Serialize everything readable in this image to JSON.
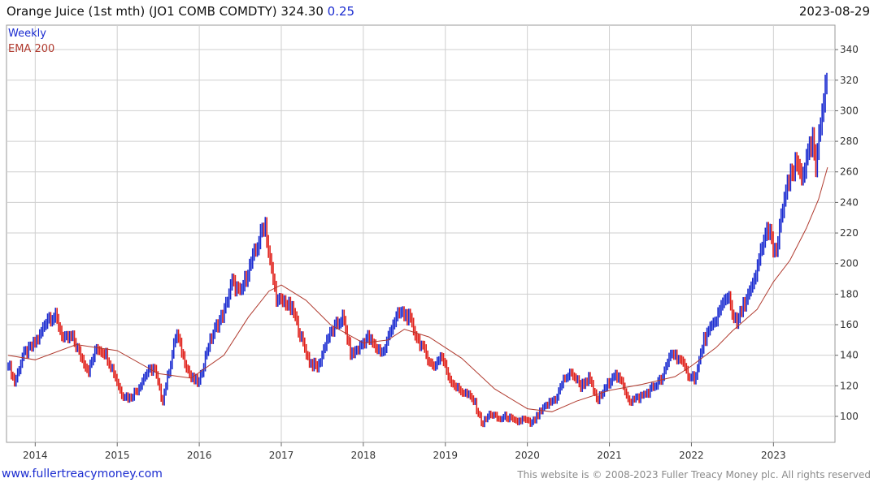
{
  "header": {
    "title": "Orange Juice (1st mth)  (JO1 COMB COMDTY) 324.30",
    "change": "0.25",
    "date": "2023-08-29"
  },
  "footer": {
    "website": "www.fullertreacymoney.com",
    "copyright": "This website is © 2008-2023 Fuller Treacy Money plc. All rights reserved"
  },
  "colors": {
    "up": "#1a2bd0",
    "down": "#e0201a",
    "ema": "#b03a2e",
    "grid": "#cfcfcf"
  },
  "chart_data": {
    "type": "line",
    "legend": [
      "Weekly",
      "EMA 200"
    ],
    "legend_position": "top-left",
    "y_axis_position": "right",
    "grid": true,
    "ylim": [
      83,
      356
    ],
    "yticks": [
      100,
      120,
      140,
      160,
      180,
      200,
      220,
      240,
      260,
      280,
      300,
      320,
      340
    ],
    "xlim": [
      2013.65,
      2023.75
    ],
    "xticks": [
      "2014",
      "2015",
      "2016",
      "2017",
      "2018",
      "2019",
      "2020",
      "2021",
      "2022",
      "2023"
    ],
    "series": [
      {
        "name": "Weekly",
        "x": [
          2013.67,
          2013.75,
          2013.85,
          2013.95,
          2014.05,
          2014.15,
          2014.25,
          2014.35,
          2014.45,
          2014.55,
          2014.65,
          2014.75,
          2014.85,
          2014.95,
          2015.05,
          2015.15,
          2015.25,
          2015.35,
          2015.45,
          2015.55,
          2015.65,
          2015.72,
          2015.8,
          2015.9,
          2016.0,
          2016.1,
          2016.2,
          2016.3,
          2016.4,
          2016.5,
          2016.6,
          2016.7,
          2016.8,
          2016.85,
          2016.9,
          2016.95,
          2017.05,
          2017.15,
          2017.25,
          2017.35,
          2017.45,
          2017.55,
          2017.65,
          2017.75,
          2017.85,
          2017.95,
          2018.05,
          2018.15,
          2018.25,
          2018.35,
          2018.45,
          2018.55,
          2018.65,
          2018.75,
          2018.85,
          2018.95,
          2019.05,
          2019.15,
          2019.25,
          2019.35,
          2019.45,
          2019.55,
          2019.65,
          2019.75,
          2019.85,
          2019.95,
          2020.05,
          2020.15,
          2020.25,
          2020.35,
          2020.45,
          2020.55,
          2020.65,
          2020.75,
          2020.85,
          2020.95,
          2021.05,
          2021.15,
          2021.25,
          2021.35,
          2021.45,
          2021.55,
          2021.65,
          2021.75,
          2021.85,
          2021.95,
          2022.05,
          2022.15,
          2022.25,
          2022.35,
          2022.45,
          2022.5,
          2022.55,
          2022.65,
          2022.75,
          2022.8,
          2022.85,
          2022.95,
          2023.0,
          2023.05,
          2023.12,
          2023.2,
          2023.28,
          2023.35,
          2023.42,
          2023.48,
          2023.52,
          2023.56,
          2023.6,
          2023.63,
          2023.66
        ],
        "values": [
          135,
          122,
          140,
          145,
          152,
          165,
          165,
          150,
          152,
          140,
          130,
          145,
          142,
          130,
          115,
          112,
          118,
          128,
          132,
          110,
          135,
          155,
          140,
          125,
          122,
          145,
          158,
          168,
          188,
          180,
          196,
          210,
          228,
          205,
          190,
          175,
          175,
          168,
          150,
          135,
          132,
          150,
          158,
          165,
          140,
          145,
          152,
          145,
          142,
          160,
          168,
          165,
          152,
          142,
          132,
          140,
          125,
          118,
          115,
          110,
          95,
          102,
          98,
          100,
          96,
          98,
          95,
          102,
          108,
          112,
          125,
          128,
          120,
          125,
          110,
          118,
          128,
          122,
          110,
          112,
          115,
          120,
          125,
          142,
          138,
          128,
          125,
          150,
          158,
          170,
          180,
          168,
          160,
          175,
          185,
          195,
          210,
          225,
          205,
          212,
          240,
          255,
          265,
          258,
          270,
          280,
          260,
          285,
          302,
          320,
          324.3
        ]
      },
      {
        "name": "EMA 200",
        "x": [
          2013.67,
          2014.0,
          2014.5,
          2015.0,
          2015.5,
          2015.9,
          2016.3,
          2016.6,
          2016.85,
          2017.0,
          2017.3,
          2017.6,
          2018.0,
          2018.3,
          2018.5,
          2018.8,
          2019.2,
          2019.6,
          2020.0,
          2020.3,
          2020.6,
          2021.0,
          2021.4,
          2021.8,
          2022.0,
          2022.3,
          2022.5,
          2022.8,
          2023.0,
          2023.2,
          2023.4,
          2023.55,
          2023.66
        ],
        "values": [
          140,
          137,
          147,
          143,
          128,
          125,
          140,
          165,
          182,
          186,
          176,
          160,
          148,
          150,
          157,
          152,
          138,
          118,
          105,
          103,
          110,
          117,
          121,
          126,
          133,
          145,
          156,
          170,
          188,
          202,
          223,
          242,
          263
        ]
      }
    ]
  }
}
